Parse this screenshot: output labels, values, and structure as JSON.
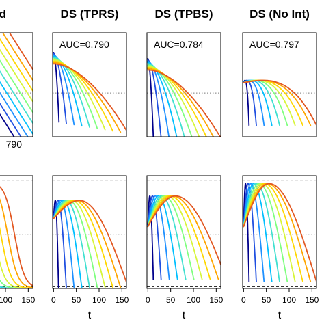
{
  "chart_data": {
    "type": "line",
    "colors": [
      "#00008b",
      "#1f4fe0",
      "#1e90ff",
      "#00bfff",
      "#40e0d0",
      "#7fff7f",
      "#d7f53a",
      "#ffd700",
      "#ffa500",
      "#e25822"
    ],
    "x_ticks": [
      0,
      50,
      100,
      150
    ],
    "xlim": [
      -2,
      160
    ],
    "xlabel": "t",
    "panels": [
      {
        "id": "merged",
        "title": "ged",
        "auc": "790",
        "top_curves": {
          "kind": "linear",
          "start_x": [
            -26,
            -11,
            4,
            19,
            34,
            49,
            64,
            79,
            94,
            109
          ],
          "rate": 0.0069
        },
        "bottom_curves": {
          "kind": "logistic",
          "center": [
            -15,
            0,
            15,
            30,
            45,
            60,
            75,
            90,
            105,
            120
          ],
          "width": 11,
          "peak_height": 0.95
        }
      },
      {
        "id": "tprs",
        "title": "DS (TPRS)",
        "auc": "AUC=0.790",
        "top_curves": {
          "kind": "decay",
          "end_x": [
            12,
            28,
            45,
            62,
            79,
            96,
            113,
            130,
            147,
            164
          ],
          "start_y": 0.81,
          "end_y": 0.14
        },
        "bottom_curves": {
          "kind": "hump",
          "tail_x": [
            11,
            28,
            45,
            62,
            79,
            96,
            113,
            130,
            147,
            164
          ],
          "peak_height": 0.78,
          "base_height": 0.62,
          "tail_y": 0.01
        }
      },
      {
        "id": "tpbs",
        "title": "DS (TPBS)",
        "auc": "AUC=0.784",
        "top_curves": {
          "kind": "decay",
          "end_x": [
            12,
            29,
            47,
            65,
            83,
            101,
            119,
            137,
            155,
            173
          ],
          "start_y": 0.75,
          "end_y": 0.0
        },
        "bottom_curves": {
          "kind": "hump",
          "tail_x": [
            12,
            29,
            47,
            65,
            83,
            101,
            119,
            137,
            155,
            173
          ],
          "peak_height": 0.82,
          "base_height": 0.55,
          "tail_y": 0.08
        }
      },
      {
        "id": "noint",
        "title": "DS (No Int)",
        "auc": "AUC=0.797",
        "top_curves": {
          "kind": "bump",
          "end_x": [
            12,
            28,
            45,
            62,
            79,
            96,
            113,
            130,
            147,
            160
          ],
          "peak_y": 0.57,
          "start_y": 0.52,
          "end_y": 0.08
        },
        "bottom_curves": {
          "kind": "hump",
          "tail_x": [
            12,
            28,
            45,
            62,
            79,
            96,
            113,
            130,
            147,
            160
          ],
          "peak_height": 0.93,
          "base_height": 0.55,
          "tail_y": 0.06
        }
      }
    ]
  }
}
